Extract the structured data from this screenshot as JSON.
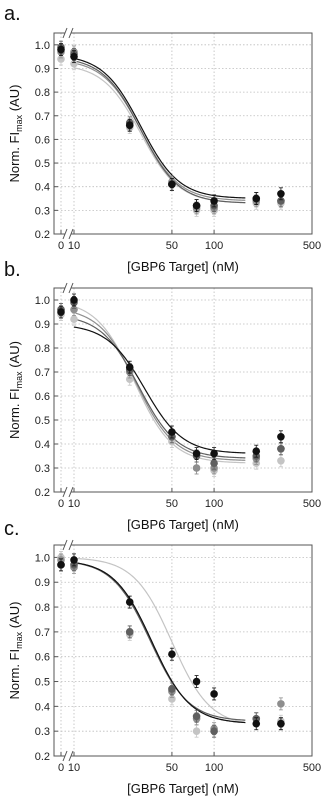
{
  "colors": {
    "black": "#111111",
    "dark_gray": "#5f5f5f",
    "mid_gray": "#8e8e8e",
    "light_gray": "#c4c4c4",
    "grid": "#bdbdbd",
    "frame": "#555555"
  },
  "chart_data": [
    {
      "panel_label": "a.",
      "type": "scatter",
      "xlabel": "[GBP6 Target] (nM)",
      "ylabel": "Norm. FI",
      "ylabel_sub": "max",
      "ylabel_unit": "(AU)",
      "x_axis_break": true,
      "x_ticks": [
        "0",
        "10",
        "50",
        "100",
        "500"
      ],
      "y_ticks": [
        "0.2",
        "0.3",
        "0.4",
        "0.5",
        "0.6",
        "0.7",
        "0.8",
        "0.9",
        "1.0"
      ],
      "ylim": [
        0.2,
        1.05
      ],
      "x": [
        0,
        10,
        25,
        50,
        75,
        100,
        200,
        300
      ],
      "grid": true,
      "series": [
        {
          "color": "light_gray",
          "values": [
            0.94,
            0.92,
            0.65,
            0.41,
            0.3,
            0.3,
            0.33,
            0.33
          ],
          "fit": [
            0.92,
            0.33,
            30
          ]
        },
        {
          "color": "mid_gray",
          "values": [
            0.97,
            0.97,
            0.66,
            0.42,
            0.31,
            0.31,
            0.34,
            0.34
          ],
          "fit": [
            0.94,
            0.34,
            30
          ]
        },
        {
          "color": "dark_gray",
          "values": [
            0.99,
            0.96,
            0.67,
            0.41,
            0.32,
            0.32,
            0.35,
            0.34
          ],
          "fit": [
            0.95,
            0.33,
            30
          ]
        },
        {
          "color": "black",
          "values": [
            0.98,
            0.95,
            0.66,
            0.41,
            0.32,
            0.34,
            0.35,
            0.37
          ],
          "fit": [
            0.96,
            0.35,
            30
          ]
        }
      ]
    },
    {
      "panel_label": "b.",
      "type": "scatter",
      "xlabel": "[GBP6 Target] (nM)",
      "ylabel": "Norm. FI",
      "ylabel_sub": "max",
      "ylabel_unit": "(AU)",
      "x_axis_break": true,
      "x_ticks": [
        "0",
        "10",
        "50",
        "100",
        "500"
      ],
      "y_ticks": [
        "0.2",
        "0.3",
        "0.4",
        "0.5",
        "0.6",
        "0.7",
        "0.8",
        "0.9",
        "1.0"
      ],
      "ylim": [
        0.2,
        1.05
      ],
      "x": [
        0,
        10,
        25,
        50,
        75,
        100,
        200,
        300
      ],
      "grid": true,
      "series": [
        {
          "color": "light_gray",
          "values": [
            0.94,
            0.92,
            0.67,
            0.41,
            0.3,
            0.29,
            0.32,
            0.33
          ],
          "fit": [
            1.0,
            0.32,
            27
          ]
        },
        {
          "color": "mid_gray",
          "values": [
            0.96,
            0.96,
            0.7,
            0.43,
            0.3,
            0.3,
            0.34,
            0.38
          ],
          "fit": [
            0.97,
            0.33,
            28
          ]
        },
        {
          "color": "dark_gray",
          "values": [
            0.96,
            0.99,
            0.71,
            0.43,
            0.35,
            0.32,
            0.35,
            0.38
          ],
          "fit": [
            0.94,
            0.34,
            29
          ]
        },
        {
          "color": "black",
          "values": [
            0.95,
            1.0,
            0.72,
            0.45,
            0.36,
            0.36,
            0.37,
            0.43
          ],
          "fit": [
            0.9,
            0.36,
            32
          ]
        }
      ]
    },
    {
      "panel_label": "c.",
      "type": "scatter",
      "xlabel": "[GBP6 Target] (nM)",
      "ylabel": "Norm. FI",
      "ylabel_sub": "max",
      "ylabel_unit": "(AU)",
      "x_axis_break": true,
      "x_ticks": [
        "0",
        "10",
        "50",
        "100",
        "500"
      ],
      "y_ticks": [
        "0.2",
        "0.3",
        "0.4",
        "0.5",
        "0.6",
        "0.7",
        "0.8",
        "0.9",
        "1.0"
      ],
      "ylim": [
        0.2,
        1.05
      ],
      "x": [
        0,
        10,
        25,
        50,
        75,
        100,
        200,
        300
      ],
      "grid": true,
      "series": [
        {
          "color": "light_gray",
          "values": [
            1.0,
            0.97,
            0.69,
            0.43,
            0.3,
            0.3,
            0.35,
            0.34
          ],
          "fit": [
            1.0,
            0.32,
            50
          ]
        },
        {
          "color": "mid_gray",
          "values": [
            0.99,
            0.96,
            0.7,
            0.46,
            0.35,
            0.31,
            0.35,
            0.41
          ],
          "fit": [
            0.99,
            0.33,
            36
          ]
        },
        {
          "color": "dark_gray",
          "values": [
            0.97,
            0.97,
            0.7,
            0.47,
            0.36,
            0.3,
            0.35,
            0.33
          ],
          "fit": [
            0.99,
            0.34,
            35
          ]
        },
        {
          "color": "black",
          "values": [
            0.97,
            0.99,
            0.82,
            0.61,
            0.5,
            0.45,
            0.33,
            0.33
          ],
          "fit": [
            0.99,
            0.33,
            36
          ]
        }
      ]
    }
  ]
}
